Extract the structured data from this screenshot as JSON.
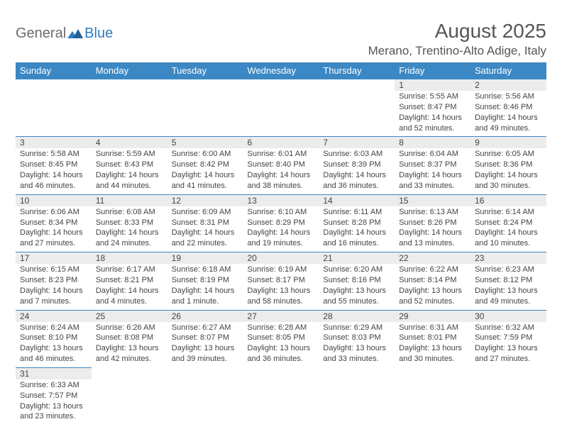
{
  "logo": {
    "text1": "General",
    "text2": "Blue"
  },
  "title": "August 2025",
  "location": "Merano, Trentino-Alto Adige, Italy",
  "colors": {
    "header_bg": "#3b88c4",
    "header_text": "#ffffff",
    "daynum_bg": "#ececec",
    "border": "#3b88c4",
    "text": "#444444",
    "logo_gray": "#6b6b6b",
    "logo_blue": "#2d7cc1"
  },
  "weekdays": [
    "Sunday",
    "Monday",
    "Tuesday",
    "Wednesday",
    "Thursday",
    "Friday",
    "Saturday"
  ],
  "weeks": [
    [
      null,
      null,
      null,
      null,
      null,
      {
        "n": "1",
        "sr": "Sunrise: 5:55 AM",
        "ss": "Sunset: 8:47 PM",
        "d1": "Daylight: 14 hours",
        "d2": "and 52 minutes."
      },
      {
        "n": "2",
        "sr": "Sunrise: 5:56 AM",
        "ss": "Sunset: 8:46 PM",
        "d1": "Daylight: 14 hours",
        "d2": "and 49 minutes."
      }
    ],
    [
      {
        "n": "3",
        "sr": "Sunrise: 5:58 AM",
        "ss": "Sunset: 8:45 PM",
        "d1": "Daylight: 14 hours",
        "d2": "and 46 minutes."
      },
      {
        "n": "4",
        "sr": "Sunrise: 5:59 AM",
        "ss": "Sunset: 8:43 PM",
        "d1": "Daylight: 14 hours",
        "d2": "and 44 minutes."
      },
      {
        "n": "5",
        "sr": "Sunrise: 6:00 AM",
        "ss": "Sunset: 8:42 PM",
        "d1": "Daylight: 14 hours",
        "d2": "and 41 minutes."
      },
      {
        "n": "6",
        "sr": "Sunrise: 6:01 AM",
        "ss": "Sunset: 8:40 PM",
        "d1": "Daylight: 14 hours",
        "d2": "and 38 minutes."
      },
      {
        "n": "7",
        "sr": "Sunrise: 6:03 AM",
        "ss": "Sunset: 8:39 PM",
        "d1": "Daylight: 14 hours",
        "d2": "and 36 minutes."
      },
      {
        "n": "8",
        "sr": "Sunrise: 6:04 AM",
        "ss": "Sunset: 8:37 PM",
        "d1": "Daylight: 14 hours",
        "d2": "and 33 minutes."
      },
      {
        "n": "9",
        "sr": "Sunrise: 6:05 AM",
        "ss": "Sunset: 8:36 PM",
        "d1": "Daylight: 14 hours",
        "d2": "and 30 minutes."
      }
    ],
    [
      {
        "n": "10",
        "sr": "Sunrise: 6:06 AM",
        "ss": "Sunset: 8:34 PM",
        "d1": "Daylight: 14 hours",
        "d2": "and 27 minutes."
      },
      {
        "n": "11",
        "sr": "Sunrise: 6:08 AM",
        "ss": "Sunset: 8:33 PM",
        "d1": "Daylight: 14 hours",
        "d2": "and 24 minutes."
      },
      {
        "n": "12",
        "sr": "Sunrise: 6:09 AM",
        "ss": "Sunset: 8:31 PM",
        "d1": "Daylight: 14 hours",
        "d2": "and 22 minutes."
      },
      {
        "n": "13",
        "sr": "Sunrise: 6:10 AM",
        "ss": "Sunset: 8:29 PM",
        "d1": "Daylight: 14 hours",
        "d2": "and 19 minutes."
      },
      {
        "n": "14",
        "sr": "Sunrise: 6:11 AM",
        "ss": "Sunset: 8:28 PM",
        "d1": "Daylight: 14 hours",
        "d2": "and 16 minutes."
      },
      {
        "n": "15",
        "sr": "Sunrise: 6:13 AM",
        "ss": "Sunset: 8:26 PM",
        "d1": "Daylight: 14 hours",
        "d2": "and 13 minutes."
      },
      {
        "n": "16",
        "sr": "Sunrise: 6:14 AM",
        "ss": "Sunset: 8:24 PM",
        "d1": "Daylight: 14 hours",
        "d2": "and 10 minutes."
      }
    ],
    [
      {
        "n": "17",
        "sr": "Sunrise: 6:15 AM",
        "ss": "Sunset: 8:23 PM",
        "d1": "Daylight: 14 hours",
        "d2": "and 7 minutes."
      },
      {
        "n": "18",
        "sr": "Sunrise: 6:17 AM",
        "ss": "Sunset: 8:21 PM",
        "d1": "Daylight: 14 hours",
        "d2": "and 4 minutes."
      },
      {
        "n": "19",
        "sr": "Sunrise: 6:18 AM",
        "ss": "Sunset: 8:19 PM",
        "d1": "Daylight: 14 hours",
        "d2": "and 1 minute."
      },
      {
        "n": "20",
        "sr": "Sunrise: 6:19 AM",
        "ss": "Sunset: 8:17 PM",
        "d1": "Daylight: 13 hours",
        "d2": "and 58 minutes."
      },
      {
        "n": "21",
        "sr": "Sunrise: 6:20 AM",
        "ss": "Sunset: 8:16 PM",
        "d1": "Daylight: 13 hours",
        "d2": "and 55 minutes."
      },
      {
        "n": "22",
        "sr": "Sunrise: 6:22 AM",
        "ss": "Sunset: 8:14 PM",
        "d1": "Daylight: 13 hours",
        "d2": "and 52 minutes."
      },
      {
        "n": "23",
        "sr": "Sunrise: 6:23 AM",
        "ss": "Sunset: 8:12 PM",
        "d1": "Daylight: 13 hours",
        "d2": "and 49 minutes."
      }
    ],
    [
      {
        "n": "24",
        "sr": "Sunrise: 6:24 AM",
        "ss": "Sunset: 8:10 PM",
        "d1": "Daylight: 13 hours",
        "d2": "and 46 minutes."
      },
      {
        "n": "25",
        "sr": "Sunrise: 6:26 AM",
        "ss": "Sunset: 8:08 PM",
        "d1": "Daylight: 13 hours",
        "d2": "and 42 minutes."
      },
      {
        "n": "26",
        "sr": "Sunrise: 6:27 AM",
        "ss": "Sunset: 8:07 PM",
        "d1": "Daylight: 13 hours",
        "d2": "and 39 minutes."
      },
      {
        "n": "27",
        "sr": "Sunrise: 6:28 AM",
        "ss": "Sunset: 8:05 PM",
        "d1": "Daylight: 13 hours",
        "d2": "and 36 minutes."
      },
      {
        "n": "28",
        "sr": "Sunrise: 6:29 AM",
        "ss": "Sunset: 8:03 PM",
        "d1": "Daylight: 13 hours",
        "d2": "and 33 minutes."
      },
      {
        "n": "29",
        "sr": "Sunrise: 6:31 AM",
        "ss": "Sunset: 8:01 PM",
        "d1": "Daylight: 13 hours",
        "d2": "and 30 minutes."
      },
      {
        "n": "30",
        "sr": "Sunrise: 6:32 AM",
        "ss": "Sunset: 7:59 PM",
        "d1": "Daylight: 13 hours",
        "d2": "and 27 minutes."
      }
    ],
    [
      {
        "n": "31",
        "sr": "Sunrise: 6:33 AM",
        "ss": "Sunset: 7:57 PM",
        "d1": "Daylight: 13 hours",
        "d2": "and 23 minutes."
      },
      null,
      null,
      null,
      null,
      null,
      null
    ]
  ]
}
